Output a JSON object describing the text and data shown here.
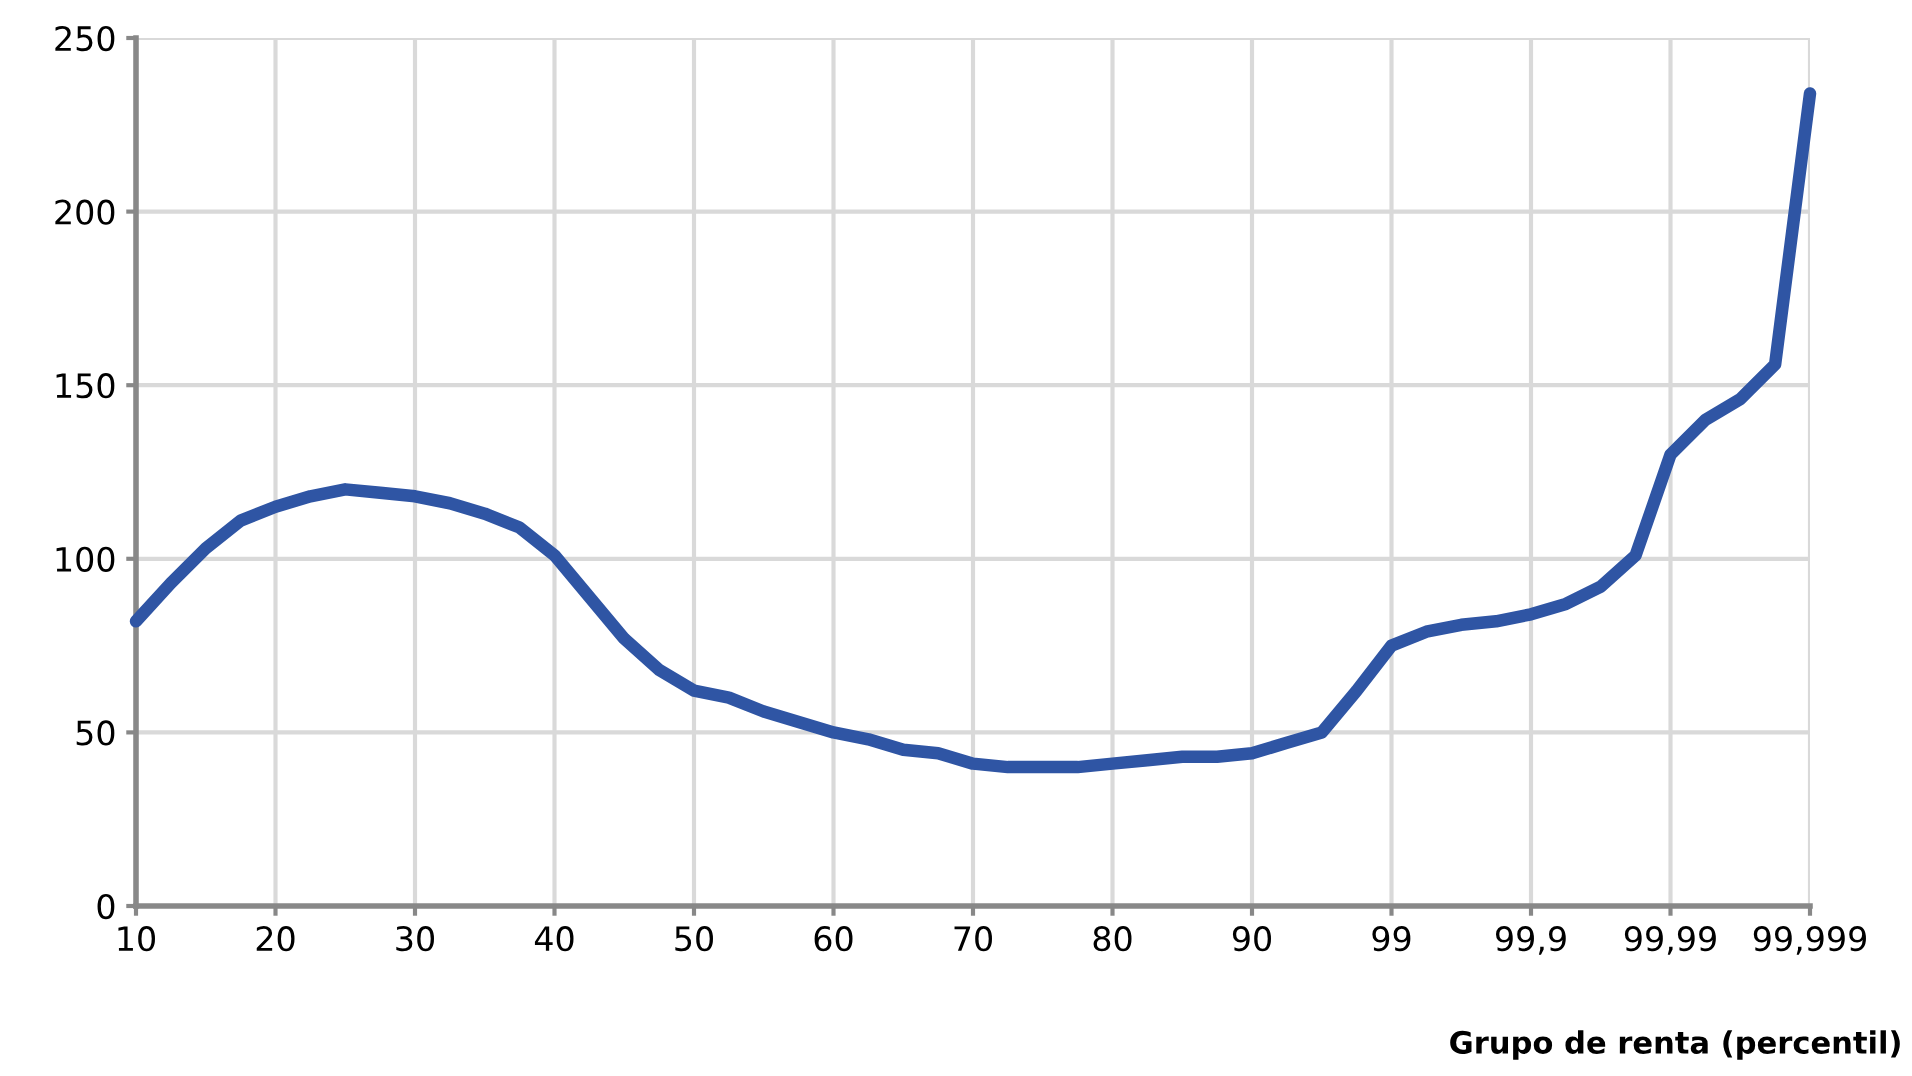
{
  "chart_data": {
    "type": "line",
    "xlabel": "Grupo de renta (percentil)",
    "categories": [
      "10",
      null,
      null,
      null,
      "20",
      null,
      null,
      null,
      "30",
      null,
      null,
      null,
      "40",
      null,
      null,
      null,
      "50",
      null,
      null,
      null,
      "60",
      null,
      null,
      null,
      "70",
      null,
      null,
      null,
      "80",
      null,
      null,
      null,
      "90",
      null,
      null,
      null,
      "99",
      null,
      null,
      null,
      "99,9",
      null,
      null,
      null,
      "99,99",
      null,
      null,
      null,
      "99,999"
    ],
    "series": [
      {
        "color": "#2f55a4",
        "values": [
          82,
          93,
          103,
          111,
          115,
          118,
          120,
          119,
          118,
          116,
          113,
          109,
          101,
          89,
          77,
          68,
          62,
          60,
          56,
          53,
          50,
          48,
          45,
          44,
          41,
          40,
          40,
          40,
          41,
          42,
          43,
          43,
          44,
          47,
          50,
          62,
          75,
          79,
          81,
          82,
          84,
          87,
          92,
          101,
          130,
          140,
          146,
          156,
          234
        ]
      }
    ],
    "ylim": [
      0,
      250
    ],
    "yticks": [
      0,
      50,
      100,
      150,
      200,
      250
    ],
    "grid": true,
    "marker": "none",
    "line_style": "solid"
  }
}
